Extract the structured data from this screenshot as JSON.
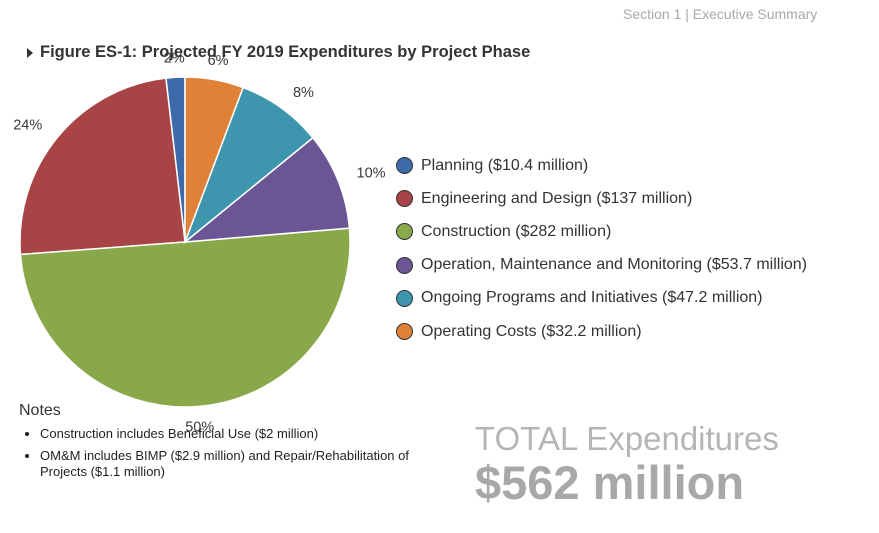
{
  "header": {
    "section": "Section 1 | Executive Summary"
  },
  "figure": {
    "title": "Figure ES-1: Projected FY 2019 Expenditures by Project Phase"
  },
  "chart_data": {
    "type": "pie",
    "title": "Figure ES-1: Projected FY 2019 Expenditures by Project Phase",
    "start_angle_deg": 90,
    "direction": "counterclockwise",
    "slices": [
      {
        "name": "Planning ($10.4 million)",
        "value": 10.4,
        "label": "2%",
        "color": "#3d6aa8"
      },
      {
        "name": "Engineering and Design ($137 million)",
        "value": 137,
        "label": "24%",
        "color": "#a84446"
      },
      {
        "name": "Construction ($282 million)",
        "value": 282,
        "label": "50%",
        "color": "#88a84a"
      },
      {
        "name": "Operation, Maintenance and Monitoring ($53.7 million)",
        "value": 53.7,
        "label": "10%",
        "color": "#6b5594"
      },
      {
        "name": "Ongoing Programs and Initiatives ($47.2 million)",
        "value": 47.2,
        "label": "8%",
        "color": "#3e96ae"
      },
      {
        "name": "Operating Costs ($32.2 million)",
        "value": 32.2,
        "label": "6%",
        "color": "#df8238"
      }
    ],
    "legend_position": "right"
  },
  "legend": [
    {
      "label": "Planning ($10.4 million)",
      "color": "#3d6aa8"
    },
    {
      "label": "Engineering and Design ($137 million)",
      "color": "#a84446"
    },
    {
      "label": "Construction ($282 million)",
      "color": "#88a84a"
    },
    {
      "label": "Operation, Maintenance and Monitoring ($53.7 million)",
      "color": "#6b5594"
    },
    {
      "label": "Ongoing Programs and Initiatives ($47.2 million)",
      "color": "#3e96ae"
    },
    {
      "label": "Operating Costs ($32.2 million)",
      "color": "#df8238"
    }
  ],
  "notes": {
    "title": "Notes",
    "items": [
      "Construction includes Beneficial Use ($2 million)",
      "OM&M includes BIMP ($2.9 million) and Repair/Rehabilitation of Projects ($1.1 million)"
    ]
  },
  "total": {
    "label": "TOTAL Expenditures",
    "value": "$562 million"
  }
}
